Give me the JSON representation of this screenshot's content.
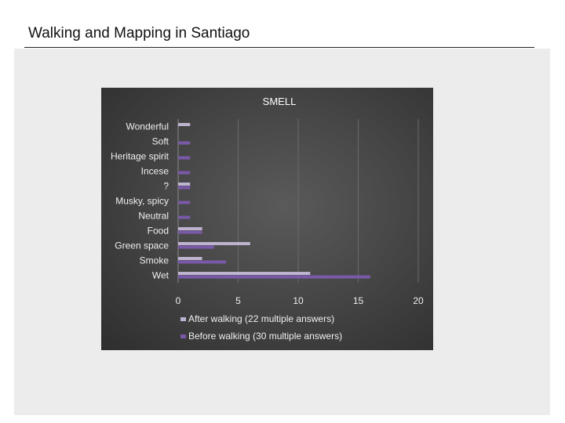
{
  "slide": {
    "title": "Walking and Mapping in Santiago"
  },
  "chart_data": {
    "type": "bar",
    "orientation": "horizontal",
    "title": "SMELL",
    "categories": [
      "Wonderful",
      "Soft",
      "Heritage spirit",
      "Incese",
      "?",
      "Musky, spicy",
      "Neutral",
      "Food",
      "Green space",
      "Smoke",
      "Wet"
    ],
    "series": [
      {
        "name": "After walking (22 multiple answers)",
        "color": "#bdb3cf",
        "values": [
          1,
          0,
          0,
          0,
          1,
          0,
          0,
          2,
          6,
          2,
          11
        ]
      },
      {
        "name": "Before walking (30 multiple answers)",
        "color": "#7a5aa8",
        "values": [
          0,
          1,
          1,
          1,
          1,
          1,
          1,
          2,
          3,
          4,
          16
        ]
      }
    ],
    "xlim": [
      0,
      20
    ],
    "xticks": [
      "0",
      "5",
      "10",
      "15",
      "20"
    ],
    "grid": true,
    "legend_position": "bottom"
  }
}
